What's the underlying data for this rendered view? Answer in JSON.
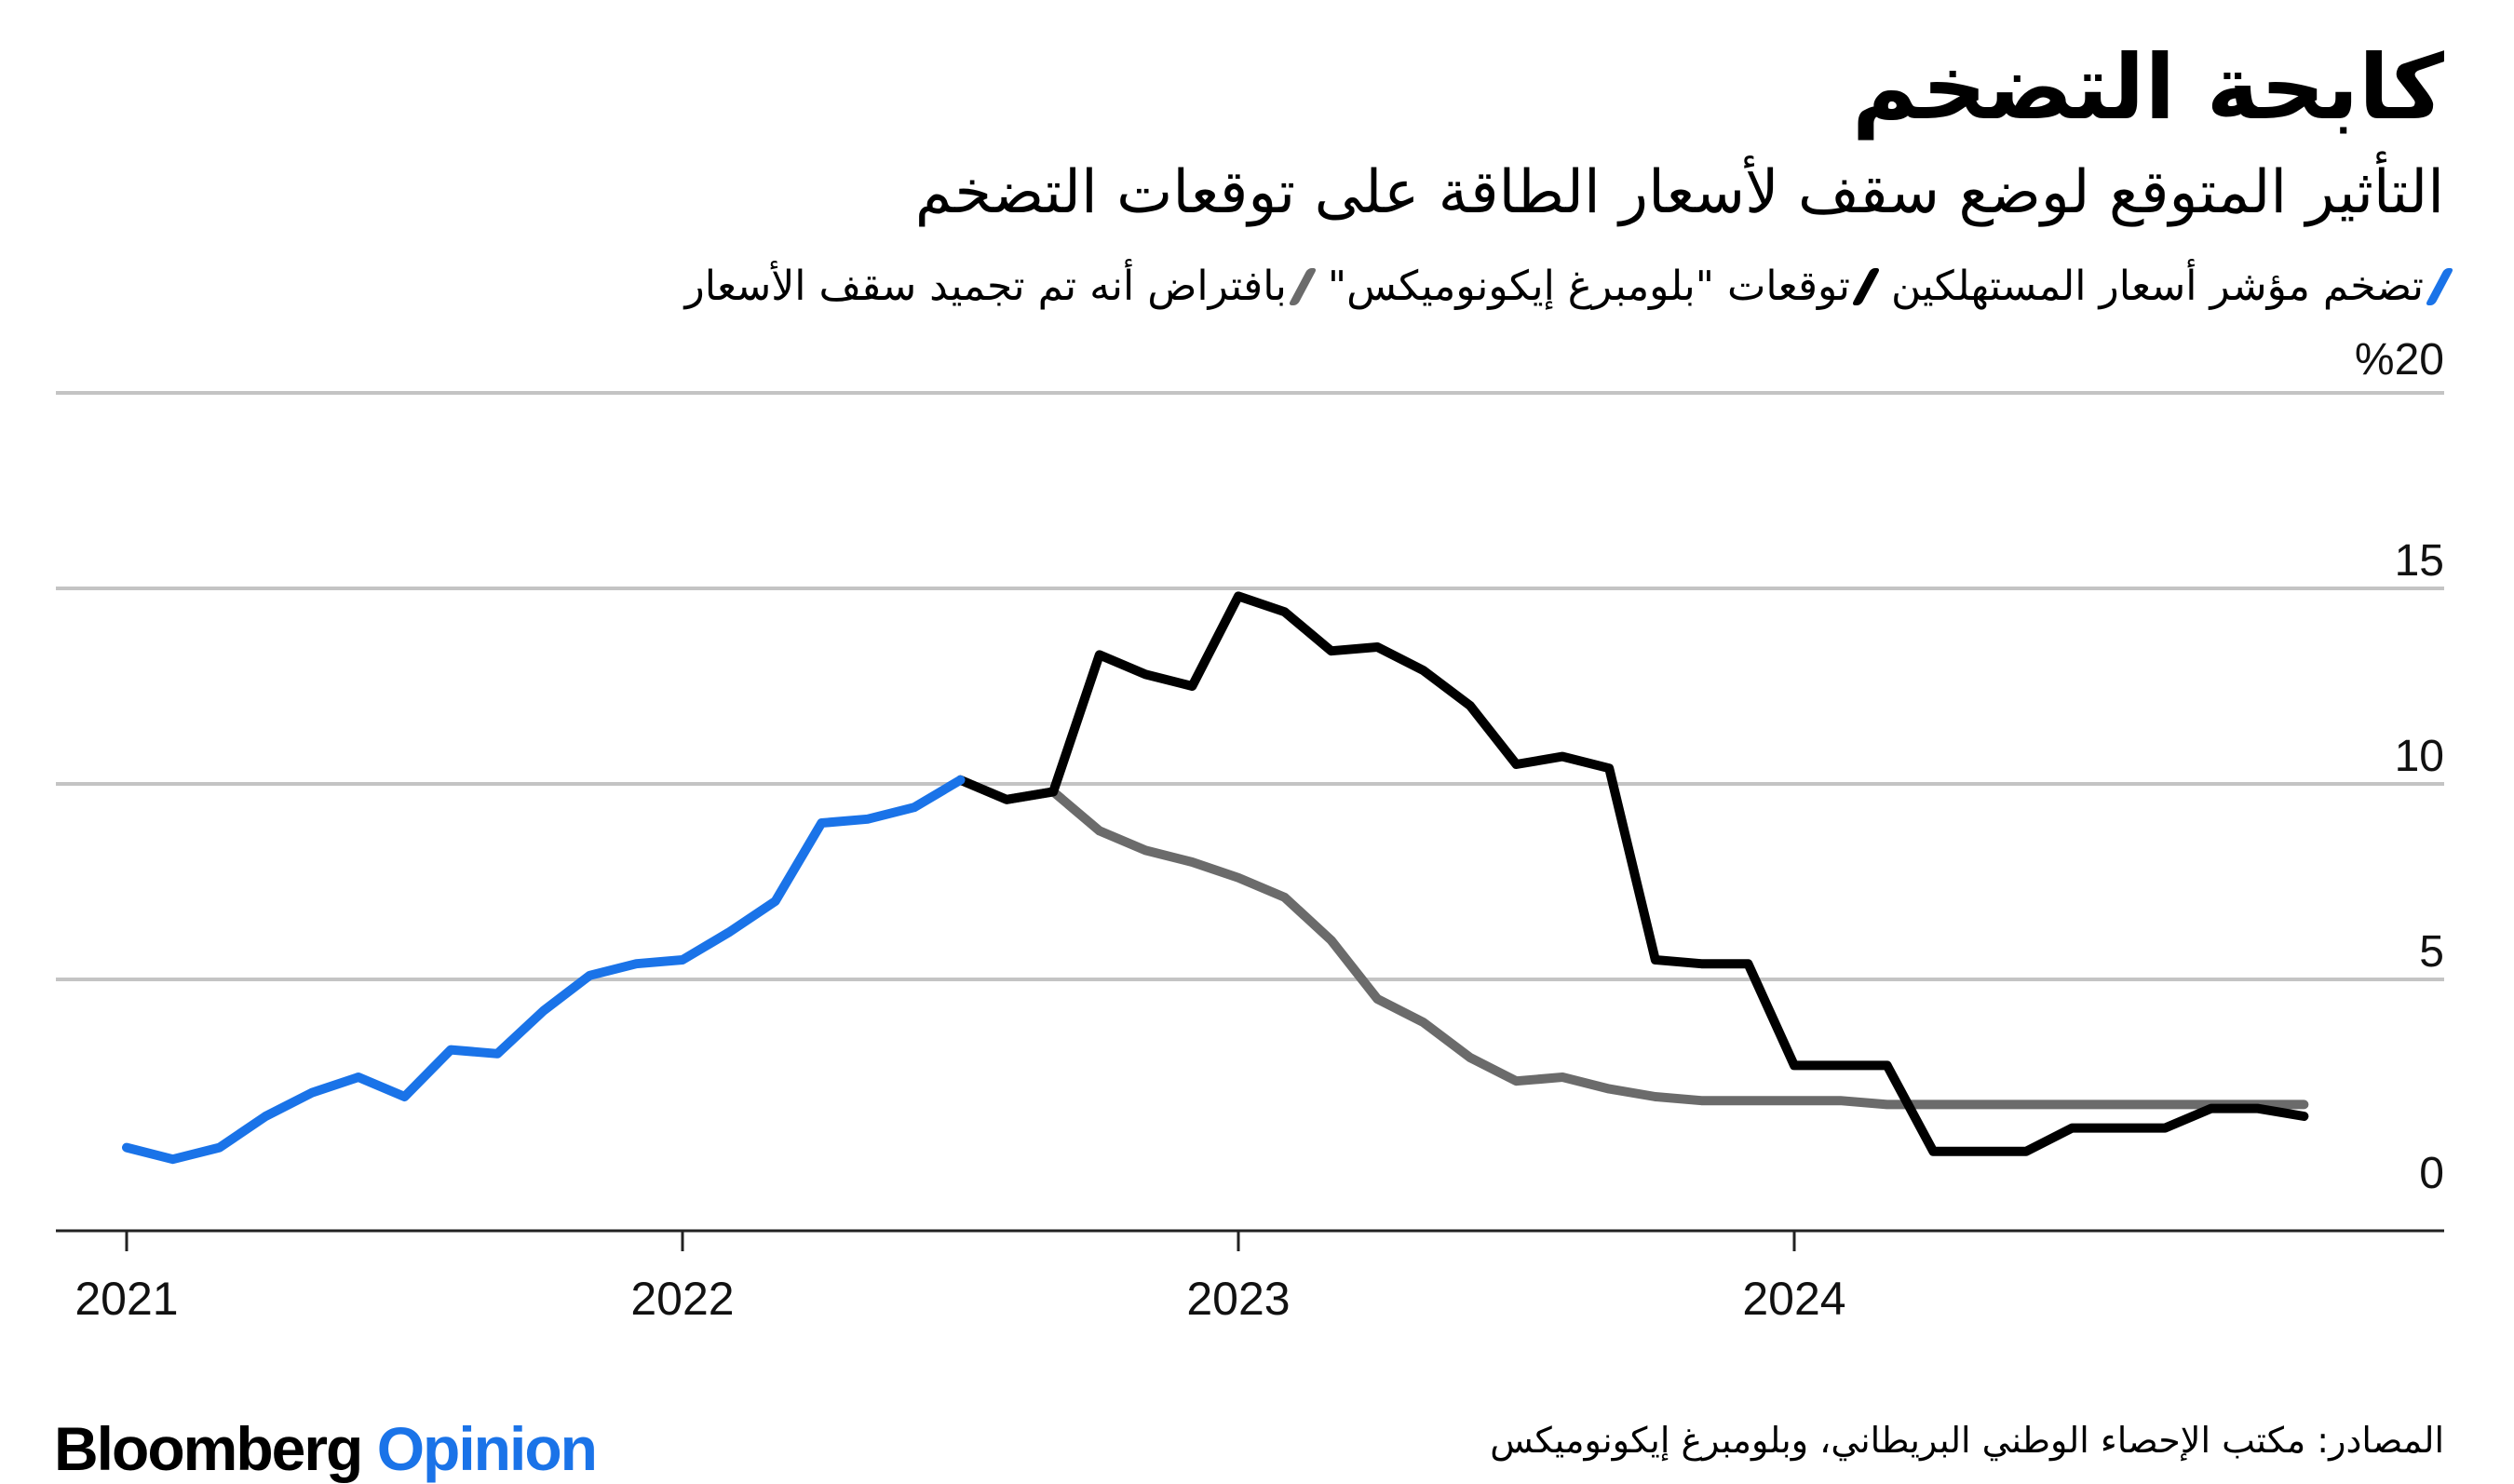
{
  "title": "كابحة التضخم",
  "subtitle": "التأثير المتوقع لوضع سقف لأسعار الطاقة على توقعات التضخم",
  "legend": [
    {
      "label": "تضخم مؤشر أسعار المستهلكين",
      "color": "#1a73e8"
    },
    {
      "label": "توقعات \"بلومبرغ إيكونوميكس\"",
      "color": "#000000"
    },
    {
      "label": "بافتراض أنه تم تجميد سقف الأسعار",
      "color": "#6b6b6b"
    }
  ],
  "source": "المصادر: مكتب الإحصاء الوطني البريطاني، وبلومبرغ إيكونوميكس",
  "brand": {
    "name": "Bloomberg",
    "suffix": "Opinion"
  },
  "chart_data": {
    "type": "line",
    "ylim": [
      -0.5,
      20
    ],
    "yticks": [
      0,
      5,
      10,
      15,
      20
    ],
    "ytick_labels": [
      "0",
      "5",
      "10",
      "15",
      "%20"
    ],
    "xlim": [
      2021,
      2025
    ],
    "xticks": [
      2021,
      2022,
      2023,
      2024
    ],
    "xtick_labels": [
      "2021",
      "2022",
      "2023",
      "2024"
    ],
    "grid": true,
    "series": [
      {
        "name": "تضخم مؤشر أسعار المستهلكين",
        "color": "#1a73e8",
        "x": [
          2021.0,
          2021.083,
          2021.167,
          2021.25,
          2021.333,
          2021.417,
          2021.5,
          2021.583,
          2021.667,
          2021.75,
          2021.833,
          2021.917,
          2022.0,
          2022.083,
          2022.167,
          2022.25,
          2022.333,
          2022.417,
          2022.5
        ],
        "y": [
          0.7,
          0.4,
          0.7,
          1.5,
          2.1,
          2.5,
          2.0,
          3.2,
          3.1,
          4.2,
          5.1,
          5.4,
          5.5,
          6.2,
          7.0,
          9.0,
          9.1,
          9.4,
          10.1
        ]
      },
      {
        "name": "توقعات \"بلومبرغ إيكونوميكس\"",
        "color": "#000000",
        "x": [
          2022.5,
          2022.583,
          2022.667,
          2022.75,
          2022.833,
          2022.917,
          2023.0,
          2023.083,
          2023.167,
          2023.25,
          2023.333,
          2023.417,
          2023.5,
          2023.583,
          2023.667,
          2023.75,
          2023.833,
          2023.917,
          2024.0,
          2024.083,
          2024.167,
          2024.25,
          2024.333,
          2024.417,
          2024.5,
          2024.583,
          2024.667,
          2024.75,
          2024.833,
          2024.917
        ],
        "y": [
          10.1,
          9.6,
          9.8,
          13.3,
          12.8,
          12.5,
          14.8,
          14.4,
          13.4,
          13.5,
          12.9,
          12.0,
          10.5,
          10.7,
          10.4,
          5.5,
          5.4,
          5.4,
          2.8,
          2.8,
          2.8,
          0.6,
          0.6,
          0.6,
          1.2,
          1.2,
          1.2,
          1.7,
          1.7,
          1.5
        ]
      },
      {
        "name": "بافتراض أنه تم تجميد سقف الأسعار",
        "color": "#6b6b6b",
        "x": [
          2022.5,
          2022.583,
          2022.667,
          2022.75,
          2022.833,
          2022.917,
          2023.0,
          2023.083,
          2023.167,
          2023.25,
          2023.333,
          2023.417,
          2023.5,
          2023.583,
          2023.667,
          2023.75,
          2023.833,
          2023.917,
          2024.0,
          2024.083,
          2024.167,
          2024.25,
          2024.333,
          2024.417,
          2024.5,
          2024.583,
          2024.667,
          2024.75,
          2024.833,
          2024.917
        ],
        "y": [
          10.1,
          9.6,
          9.8,
          8.8,
          8.3,
          8.0,
          7.6,
          7.1,
          6.0,
          4.5,
          3.9,
          3.0,
          2.4,
          2.5,
          2.2,
          2.0,
          1.9,
          1.9,
          1.9,
          1.9,
          1.8,
          1.8,
          1.8,
          1.8,
          1.8,
          1.8,
          1.8,
          1.8,
          1.8,
          1.8
        ]
      }
    ]
  }
}
